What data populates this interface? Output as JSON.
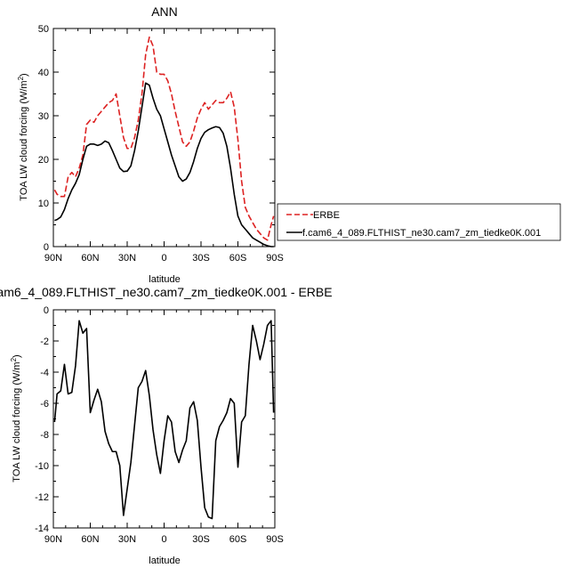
{
  "chart_data": [
    {
      "type": "line",
      "title": "ANN",
      "xlabel": "latitude",
      "ylabel": "TOA LW cloud forcing (W/m²)",
      "xlim": [
        90,
        -90
      ],
      "ylim": [
        0,
        50
      ],
      "xticks": [
        90,
        60,
        30,
        0,
        -30,
        -60,
        -90
      ],
      "xtick_labels": [
        "90N",
        "60N",
        "30N",
        "0",
        "30S",
        "60S",
        "90S"
      ],
      "yticks": [
        0,
        10,
        20,
        30,
        40,
        50
      ],
      "ytick_labels": [
        "0",
        "10",
        "20",
        "30",
        "40",
        "50"
      ],
      "grid": false,
      "legend_position": "right",
      "series": [
        {
          "name": "ERBE",
          "color": "#dd2222",
          "dash": "dashed",
          "x": [
            89,
            87,
            84,
            81,
            78,
            75,
            72,
            69,
            66,
            63,
            60,
            57,
            54,
            51,
            48,
            45,
            42,
            39,
            36,
            33,
            30,
            27,
            24,
            21,
            18,
            15,
            12,
            9,
            6,
            3,
            0,
            -3,
            -6,
            -9,
            -12,
            -15,
            -18,
            -21,
            -24,
            -27,
            -30,
            -33,
            -36,
            -39,
            -42,
            -45,
            -48,
            -51,
            -54,
            -57,
            -60,
            -63,
            -66,
            -69,
            -72,
            -75,
            -78,
            -81,
            -84,
            -87,
            -89
          ],
          "y": [
            13,
            12,
            11.5,
            11.5,
            16,
            17,
            16,
            18,
            21,
            28,
            29,
            28.5,
            30,
            31,
            32,
            33,
            33.5,
            35,
            30,
            25,
            22.5,
            22.5,
            25,
            29,
            35,
            44,
            48,
            46,
            40,
            39.5,
            39.5,
            38,
            35,
            31,
            27.5,
            24,
            23,
            24,
            26.5,
            29.5,
            31.5,
            33,
            31.5,
            32.5,
            33.5,
            33,
            33,
            34,
            35.5,
            32,
            24.5,
            15,
            9,
            7,
            5.5,
            4,
            3,
            2,
            1.5,
            5,
            7
          ]
        },
        {
          "name": "f.cam6_4_089.FLTHIST_ne30.cam7_zm_tiedke0K.001",
          "color": "#000000",
          "dash": "solid",
          "x": [
            89,
            87,
            84,
            81,
            78,
            75,
            72,
            69,
            66,
            63,
            60,
            57,
            54,
            51,
            48,
            45,
            42,
            39,
            36,
            33,
            30,
            27,
            24,
            21,
            18,
            15,
            12,
            9,
            6,
            3,
            0,
            -3,
            -6,
            -9,
            -12,
            -15,
            -18,
            -21,
            -24,
            -27,
            -30,
            -33,
            -36,
            -39,
            -42,
            -45,
            -48,
            -51,
            -54,
            -57,
            -60,
            -63,
            -66,
            -69,
            -72,
            -75,
            -78,
            -81,
            -84,
            -87,
            -89
          ],
          "y": [
            6,
            6.2,
            6.8,
            8.5,
            11,
            13,
            14.5,
            16.5,
            20,
            23,
            23.5,
            23.5,
            23.2,
            23.5,
            24.2,
            23.8,
            22,
            20,
            18,
            17.2,
            17.3,
            18.5,
            22,
            26.5,
            32,
            37.5,
            37,
            34,
            31.5,
            30,
            27,
            24,
            21,
            18.5,
            16,
            15,
            15.5,
            17,
            19.5,
            22.5,
            24.8,
            26.2,
            26.8,
            27.2,
            27.5,
            27.3,
            26,
            23,
            18,
            12,
            7,
            5,
            4,
            3,
            2,
            1.5,
            1,
            0.5,
            0.2,
            0,
            0
          ]
        }
      ]
    },
    {
      "type": "line",
      "title": "am6_4_089.FLTHIST_ne30.cam7_zm_tiedke0K.001 - ERBE",
      "xlabel": "latitude",
      "ylabel": "TOA LW cloud forcing (W/m²)",
      "xlim": [
        90,
        -90
      ],
      "ylim": [
        -14,
        0
      ],
      "xticks": [
        90,
        60,
        30,
        0,
        -30,
        -60,
        -90
      ],
      "xtick_labels": [
        "90N",
        "60N",
        "30N",
        "0",
        "30S",
        "60S",
        "90S"
      ],
      "yticks": [
        0,
        -2,
        -4,
        -6,
        -8,
        -10,
        -12,
        -14
      ],
      "ytick_labels": [
        "0",
        "-2",
        "-4",
        "-6",
        "-8",
        "-10",
        "-12",
        "-14"
      ],
      "grid": false,
      "series": [
        {
          "color": "#000000",
          "dash": "solid",
          "x": [
            89,
            87,
            84,
            81,
            78,
            75,
            72,
            69,
            66,
            63,
            60,
            57,
            54,
            51,
            48,
            45,
            42,
            39,
            36,
            33,
            30,
            27,
            24,
            21,
            18,
            15,
            12,
            9,
            6,
            3,
            0,
            -3,
            -6,
            -9,
            -12,
            -15,
            -18,
            -21,
            -24,
            -27,
            -30,
            -33,
            -36,
            -39,
            -42,
            -45,
            -48,
            -51,
            -54,
            -57,
            -60,
            -63,
            -66,
            -69,
            -72,
            -75,
            -78,
            -81,
            -84,
            -87,
            -89
          ],
          "y": [
            -7.2,
            -5.4,
            -5.2,
            -3.5,
            -5.4,
            -5.3,
            -3.6,
            -0.7,
            -1.5,
            -1.2,
            -6.6,
            -5.8,
            -5.1,
            -5.9,
            -7.8,
            -8.6,
            -9.1,
            -9.1,
            -10,
            -13.2,
            -11.5,
            -9.8,
            -7.4,
            -5,
            -4.6,
            -3.9,
            -5.5,
            -7.7,
            -9.3,
            -10.5,
            -8.4,
            -6.8,
            -7.2,
            -9.1,
            -9.8,
            -9,
            -8.4,
            -6.3,
            -5.9,
            -7.1,
            -10.1,
            -12.7,
            -13.3,
            -13.4,
            -8.4,
            -7.5,
            -7.1,
            -6.6,
            -5.7,
            -6,
            -10.1,
            -7.2,
            -6.8,
            -3.5,
            -1,
            -2,
            -3.2,
            -2.2,
            -1,
            -0.7,
            -6.6
          ]
        }
      ]
    }
  ]
}
